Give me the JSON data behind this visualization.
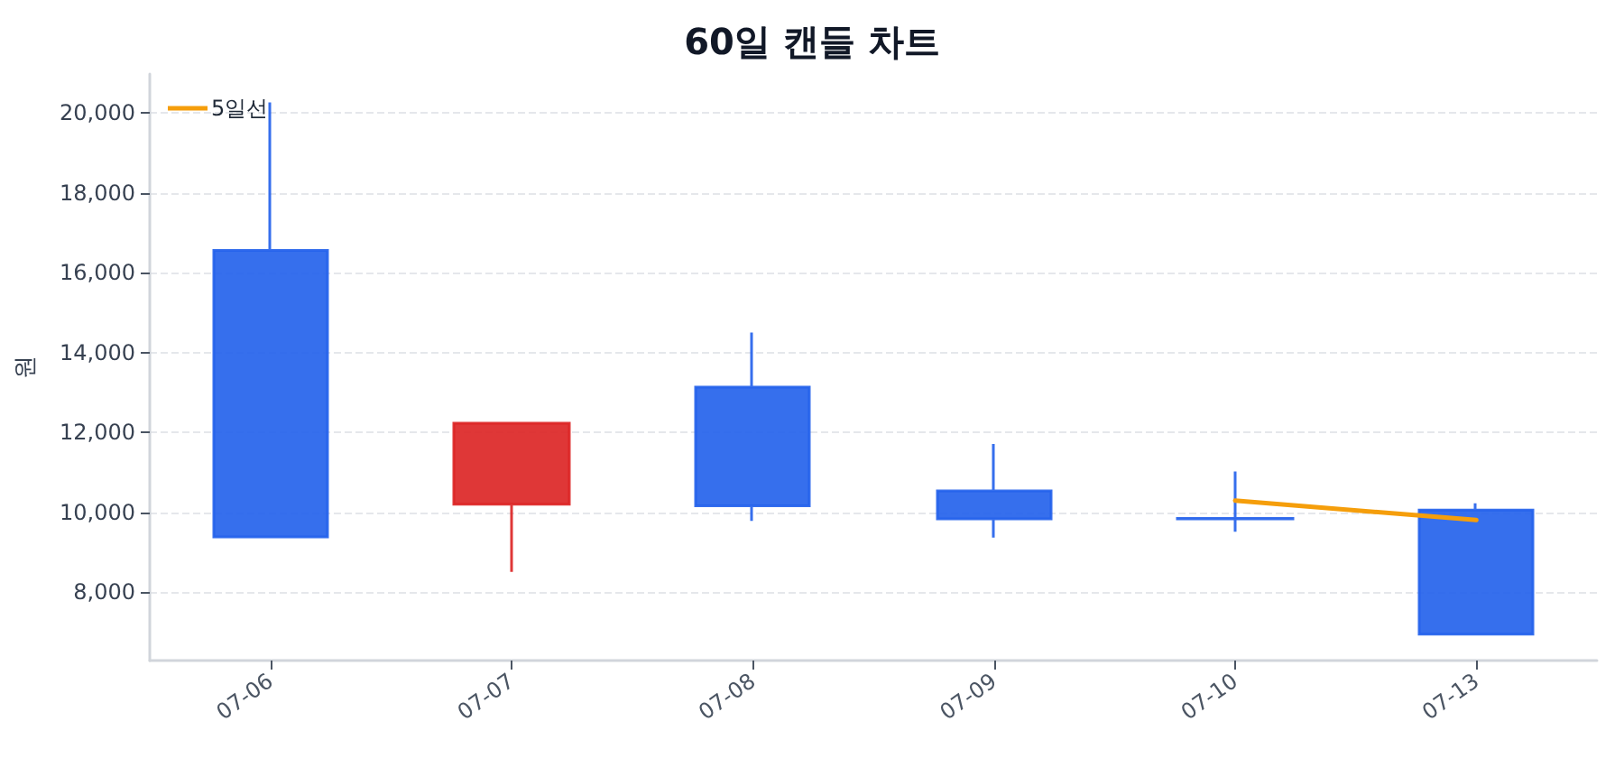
{
  "chart_data": {
    "type": "candlestick",
    "title": "60일 캔들 차트",
    "ylabel": "원",
    "categories": [
      "07-06",
      "07-07",
      "07-08",
      "07-09",
      "07-10",
      "07-13"
    ],
    "ohlc": [
      [
        16560,
        20270,
        9380,
        9380
      ],
      [
        10200,
        12230,
        8500,
        12230
      ],
      [
        13130,
        14500,
        9780,
        10160
      ],
      [
        10530,
        11710,
        9360,
        9830
      ],
      [
        9840,
        11020,
        9510,
        9830
      ],
      [
        10050,
        10220,
        6940,
        6940
      ]
    ],
    "colors": [
      "#2563eb",
      "#dc2626",
      "#2563eb",
      "#2563eb",
      "#2563eb",
      "#2563eb"
    ],
    "series": [
      {
        "type": "line",
        "name": "5일선",
        "color": "#f59e0b",
        "marker": "none",
        "line_style": "solid",
        "values": [
          null,
          null,
          null,
          null,
          10290,
          9800
        ]
      }
    ],
    "ylim": [
      6280,
      20980
    ],
    "yticks": [
      {
        "value": 8000,
        "label": "8,000"
      },
      {
        "value": 10000,
        "label": "10,000"
      },
      {
        "value": 12000,
        "label": "12,000"
      },
      {
        "value": 14000,
        "label": "14,000"
      },
      {
        "value": 16000,
        "label": "16,000"
      },
      {
        "value": 18000,
        "label": "18,000"
      },
      {
        "value": 20000,
        "label": "20,000"
      }
    ],
    "grid": "y",
    "legend": "top left"
  }
}
